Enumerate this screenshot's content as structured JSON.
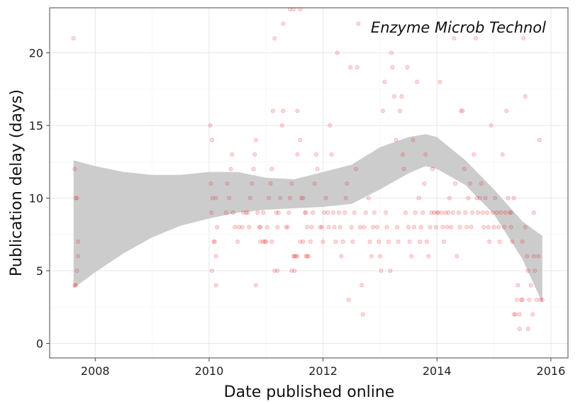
{
  "chart_data": {
    "type": "scatter",
    "annotation": "Enzyme Microb Technol",
    "xlabel": "Date published online",
    "ylabel": "Publication delay (days)",
    "xlim": [
      2007.2,
      2016.3
    ],
    "ylim": [
      -1,
      23.1
    ],
    "x_ticks": [
      2008,
      2010,
      2012,
      2014,
      2016
    ],
    "y_ticks": [
      0,
      5,
      10,
      15,
      20
    ],
    "grid": true,
    "point_color": "#e8232c",
    "band_color": "#cccccc",
    "points": [
      [
        2007.62,
        21
      ],
      [
        2007.64,
        12
      ],
      [
        2007.66,
        10
      ],
      [
        2007.68,
        10
      ],
      [
        2007.64,
        4
      ],
      [
        2007.66,
        4
      ],
      [
        2007.68,
        5
      ],
      [
        2007.7,
        6
      ],
      [
        2007.7,
        7
      ],
      [
        2010.02,
        15
      ],
      [
        2010.05,
        14
      ],
      [
        2010.03,
        11
      ],
      [
        2010.06,
        10
      ],
      [
        2010.04,
        9
      ],
      [
        2010.08,
        7
      ],
      [
        2010.1,
        7
      ],
      [
        2010.05,
        5
      ],
      [
        2010.12,
        4
      ],
      [
        2010.12,
        6
      ],
      [
        2010.14,
        8
      ],
      [
        2010.12,
        10
      ],
      [
        2010.3,
        9
      ],
      [
        2010.32,
        11
      ],
      [
        2010.35,
        10
      ],
      [
        2010.38,
        12
      ],
      [
        2010.4,
        13
      ],
      [
        2010.42,
        9
      ],
      [
        2010.45,
        8
      ],
      [
        2010.5,
        7
      ],
      [
        2010.52,
        8
      ],
      [
        2010.58,
        8
      ],
      [
        2010.6,
        9
      ],
      [
        2010.65,
        9
      ],
      [
        2010.7,
        8
      ],
      [
        2010.72,
        10
      ],
      [
        2010.75,
        11
      ],
      [
        2010.68,
        9
      ],
      [
        2010.78,
        12
      ],
      [
        2010.8,
        13
      ],
      [
        2010.82,
        14
      ],
      [
        2010.85,
        9
      ],
      [
        2010.88,
        8
      ],
      [
        2010.9,
        8
      ],
      [
        2010.95,
        9
      ],
      [
        2010.98,
        7
      ],
      [
        2011.0,
        7
      ],
      [
        2011.02,
        8
      ],
      [
        2011.05,
        10
      ],
      [
        2011.08,
        11
      ],
      [
        2011.1,
        12
      ],
      [
        2011.12,
        16
      ],
      [
        2011.15,
        21
      ],
      [
        2011.18,
        9
      ],
      [
        2011.2,
        8
      ],
      [
        2010.82,
        4
      ],
      [
        2010.9,
        7
      ],
      [
        2010.95,
        7
      ],
      [
        2011.1,
        7
      ],
      [
        2011.15,
        5
      ],
      [
        2011.2,
        5
      ],
      [
        2011.22,
        9
      ],
      [
        2011.25,
        10
      ],
      [
        2011.28,
        15
      ],
      [
        2011.3,
        22
      ],
      [
        2011.3,
        16
      ],
      [
        2011.35,
        8
      ],
      [
        2011.38,
        8
      ],
      [
        2011.4,
        9
      ],
      [
        2011.42,
        10
      ],
      [
        2011.45,
        11
      ],
      [
        2011.48,
        6
      ],
      [
        2011.5,
        6
      ],
      [
        2011.52,
        6
      ],
      [
        2011.55,
        6
      ],
      [
        2011.45,
        5
      ],
      [
        2011.5,
        5
      ],
      [
        2011.42,
        23
      ],
      [
        2011.48,
        23
      ],
      [
        2011.6,
        23
      ],
      [
        2011.55,
        16
      ],
      [
        2011.6,
        14
      ],
      [
        2011.62,
        10
      ],
      [
        2011.65,
        10
      ],
      [
        2011.68,
        9
      ],
      [
        2011.7,
        9
      ],
      [
        2011.72,
        8
      ],
      [
        2011.55,
        13
      ],
      [
        2011.6,
        7
      ],
      [
        2011.65,
        7
      ],
      [
        2011.7,
        6
      ],
      [
        2011.72,
        6
      ],
      [
        2011.75,
        6
      ],
      [
        2011.78,
        7
      ],
      [
        2011.8,
        8
      ],
      [
        2011.82,
        9
      ],
      [
        2011.85,
        11
      ],
      [
        2011.88,
        13
      ],
      [
        2011.9,
        12
      ],
      [
        2011.95,
        8
      ],
      [
        2011.98,
        8
      ],
      [
        2012.0,
        7
      ],
      [
        2012.02,
        9
      ],
      [
        2012.05,
        10
      ],
      [
        2012.08,
        9
      ],
      [
        2012.1,
        8
      ],
      [
        2012.12,
        15
      ],
      [
        2012.15,
        13
      ],
      [
        2012.18,
        9
      ],
      [
        2012.2,
        8
      ],
      [
        2012.22,
        7
      ],
      [
        2012.25,
        20
      ],
      [
        2012.28,
        9
      ],
      [
        2012.3,
        8
      ],
      [
        2012.32,
        6
      ],
      [
        2012.35,
        7
      ],
      [
        2012.38,
        9
      ],
      [
        2012.4,
        10
      ],
      [
        2012.42,
        11
      ],
      [
        2012.45,
        3
      ],
      [
        2012.48,
        19
      ],
      [
        2012.5,
        8
      ],
      [
        2012.52,
        7
      ],
      [
        2012.55,
        9
      ],
      [
        2012.58,
        12
      ],
      [
        2012.6,
        19
      ],
      [
        2012.62,
        22
      ],
      [
        2012.65,
        8
      ],
      [
        2012.68,
        4
      ],
      [
        2012.7,
        2
      ],
      [
        2012.72,
        8
      ],
      [
        2012.75,
        9
      ],
      [
        2012.8,
        10
      ],
      [
        2012.82,
        7
      ],
      [
        2012.85,
        6
      ],
      [
        2012.88,
        8
      ],
      [
        2012.9,
        9
      ],
      [
        2012.95,
        8
      ],
      [
        2012.98,
        7
      ],
      [
        2013.0,
        6
      ],
      [
        2013.02,
        5
      ],
      [
        2013.05,
        16
      ],
      [
        2013.08,
        18
      ],
      [
        2013.1,
        9
      ],
      [
        2013.12,
        8
      ],
      [
        2013.15,
        7
      ],
      [
        2013.18,
        5
      ],
      [
        2013.2,
        20
      ],
      [
        2013.22,
        19
      ],
      [
        2013.25,
        17
      ],
      [
        2013.28,
        14
      ],
      [
        2013.3,
        8
      ],
      [
        2013.32,
        7
      ],
      [
        2013.35,
        16
      ],
      [
        2013.38,
        17
      ],
      [
        2013.4,
        13
      ],
      [
        2013.42,
        12
      ],
      [
        2013.45,
        9
      ],
      [
        2013.48,
        19
      ],
      [
        2013.5,
        8
      ],
      [
        2013.52,
        7
      ],
      [
        2013.55,
        6
      ],
      [
        2013.58,
        14
      ],
      [
        2013.6,
        8
      ],
      [
        2013.62,
        9
      ],
      [
        2013.65,
        18
      ],
      [
        2013.68,
        10
      ],
      [
        2013.7,
        7
      ],
      [
        2013.72,
        8
      ],
      [
        2013.75,
        9
      ],
      [
        2013.78,
        11
      ],
      [
        2013.8,
        13
      ],
      [
        2013.82,
        7
      ],
      [
        2013.85,
        6
      ],
      [
        2013.88,
        8
      ],
      [
        2013.9,
        9
      ],
      [
        2013.92,
        12
      ],
      [
        2013.95,
        9
      ],
      [
        2013.98,
        8
      ],
      [
        2014.0,
        9
      ],
      [
        2014.02,
        9
      ],
      [
        2014.05,
        18
      ],
      [
        2014.08,
        9
      ],
      [
        2014.1,
        8
      ],
      [
        2014.12,
        7
      ],
      [
        2014.15,
        9
      ],
      [
        2014.18,
        8
      ],
      [
        2014.2,
        9
      ],
      [
        2014.22,
        10
      ],
      [
        2014.25,
        8
      ],
      [
        2014.28,
        9
      ],
      [
        2014.3,
        21
      ],
      [
        2014.32,
        11
      ],
      [
        2014.35,
        6
      ],
      [
        2014.38,
        9
      ],
      [
        2014.4,
        8
      ],
      [
        2014.42,
        16
      ],
      [
        2014.45,
        16
      ],
      [
        2014.48,
        12
      ],
      [
        2014.5,
        9
      ],
      [
        2014.52,
        8
      ],
      [
        2014.55,
        10
      ],
      [
        2014.58,
        11
      ],
      [
        2014.6,
        8
      ],
      [
        2014.62,
        9
      ],
      [
        2014.65,
        13
      ],
      [
        2014.68,
        21
      ],
      [
        2014.7,
        10
      ],
      [
        2014.72,
        9
      ],
      [
        2014.75,
        10
      ],
      [
        2014.78,
        11
      ],
      [
        2014.8,
        9
      ],
      [
        2014.82,
        8
      ],
      [
        2014.85,
        10
      ],
      [
        2014.88,
        9
      ],
      [
        2014.9,
        8
      ],
      [
        2014.92,
        7
      ],
      [
        2014.95,
        15
      ],
      [
        2014.98,
        9
      ],
      [
        2015.0,
        8
      ],
      [
        2015.02,
        10
      ],
      [
        2015.05,
        9
      ],
      [
        2015.08,
        8
      ],
      [
        2015.1,
        7
      ],
      [
        2015.12,
        9
      ],
      [
        2015.15,
        13
      ],
      [
        2015.18,
        8
      ],
      [
        2015.2,
        9
      ],
      [
        2015.22,
        16
      ],
      [
        2015.25,
        10
      ],
      [
        2015.28,
        9
      ],
      [
        2015.3,
        8
      ],
      [
        2015.32,
        7
      ],
      [
        2015.35,
        2
      ],
      [
        2015.38,
        2
      ],
      [
        2015.4,
        3
      ],
      [
        2015.42,
        4
      ],
      [
        2015.45,
        1
      ],
      [
        2015.48,
        3
      ],
      [
        2015.5,
        3
      ],
      [
        2015.52,
        21
      ],
      [
        2015.55,
        17
      ],
      [
        2015.58,
        6
      ],
      [
        2015.6,
        5
      ],
      [
        2015.62,
        3
      ],
      [
        2015.65,
        4
      ],
      [
        2015.68,
        2
      ],
      [
        2015.7,
        6
      ],
      [
        2015.72,
        5
      ],
      [
        2015.75,
        3
      ],
      [
        2015.78,
        6
      ],
      [
        2015.8,
        14
      ],
      [
        2015.82,
        3
      ],
      [
        2015.85,
        3
      ],
      [
        2015.6,
        1
      ],
      [
        2015.7,
        9
      ],
      [
        2015.5,
        7
      ],
      [
        2015.45,
        2
      ],
      [
        2015.55,
        8
      ],
      [
        2015.35,
        10
      ],
      [
        2015.3,
        9
      ]
    ],
    "band_upper": [
      [
        2007.62,
        12.6
      ],
      [
        2008.0,
        12.2
      ],
      [
        2008.5,
        11.8
      ],
      [
        2009.0,
        11.6
      ],
      [
        2009.5,
        11.6
      ],
      [
        2010.0,
        11.8
      ],
      [
        2010.5,
        11.8
      ],
      [
        2011.0,
        11.4
      ],
      [
        2011.5,
        11.3
      ],
      [
        2012.0,
        11.8
      ],
      [
        2012.5,
        12.3
      ],
      [
        2013.0,
        13.5
      ],
      [
        2013.5,
        14.2
      ],
      [
        2013.8,
        14.4
      ],
      [
        2014.0,
        14.2
      ],
      [
        2014.5,
        12.6
      ],
      [
        2015.0,
        10.6
      ],
      [
        2015.5,
        8.4
      ],
      [
        2015.85,
        7.4
      ]
    ],
    "band_lower": [
      [
        2007.62,
        3.8
      ],
      [
        2008.0,
        4.9
      ],
      [
        2008.5,
        6.2
      ],
      [
        2009.0,
        7.3
      ],
      [
        2009.5,
        8.1
      ],
      [
        2010.0,
        8.6
      ],
      [
        2010.5,
        9.0
      ],
      [
        2011.0,
        9.2
      ],
      [
        2011.5,
        9.3
      ],
      [
        2012.0,
        9.4
      ],
      [
        2012.5,
        9.6
      ],
      [
        2013.0,
        10.6
      ],
      [
        2013.5,
        11.7
      ],
      [
        2013.8,
        12.2
      ],
      [
        2014.0,
        12.0
      ],
      [
        2014.5,
        10.9
      ],
      [
        2015.0,
        8.9
      ],
      [
        2015.5,
        5.8
      ],
      [
        2015.85,
        2.8
      ]
    ]
  }
}
